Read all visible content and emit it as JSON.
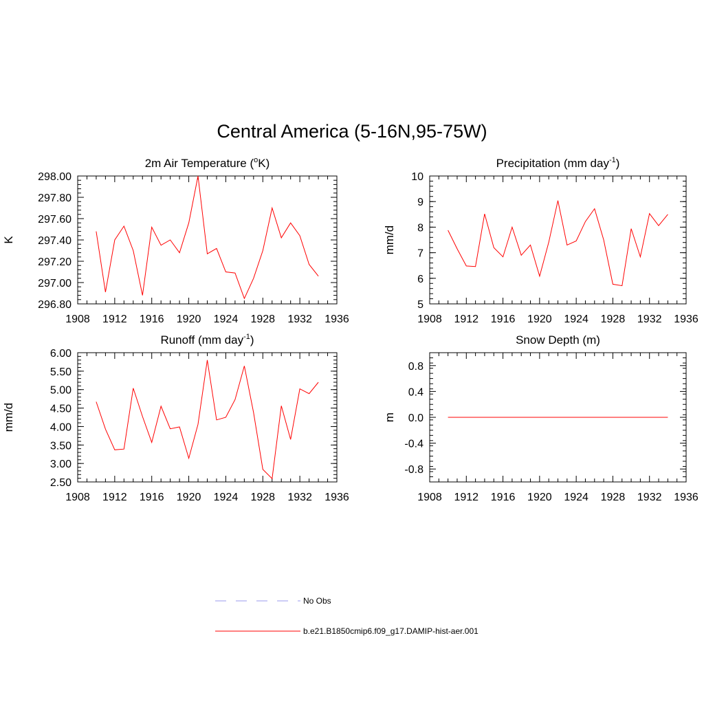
{
  "title": "Central America (5-16N,95-75W)",
  "chart_data": [
    {
      "type": "line",
      "title": "2m Air Temperature (",
      "title_sup": "o",
      "title_end": "K)",
      "ylabel": "K",
      "xlim": [
        1908,
        1936
      ],
      "ylim": [
        296.8,
        298.0
      ],
      "xticks": [
        "1908",
        "1912",
        "1916",
        "1920",
        "1924",
        "1928",
        "1932",
        "1936"
      ],
      "yticks": [
        "296.80",
        "297.00",
        "297.20",
        "297.40",
        "297.60",
        "297.80",
        "298.00"
      ],
      "x": [
        1910,
        1911,
        1912,
        1913,
        1914,
        1915,
        1916,
        1917,
        1918,
        1919,
        1920,
        1921,
        1922,
        1923,
        1924,
        1925,
        1926,
        1927,
        1928,
        1929,
        1930,
        1931,
        1932,
        1933,
        1934
      ],
      "series": [
        {
          "values": [
            297.48,
            296.91,
            297.4,
            297.53,
            297.3,
            296.88,
            297.52,
            297.35,
            297.4,
            297.28,
            297.56,
            298.0,
            297.27,
            297.32,
            297.1,
            297.09,
            296.85,
            297.04,
            297.3,
            297.7,
            297.42,
            297.56,
            297.44,
            297.17,
            297.06
          ]
        }
      ]
    },
    {
      "type": "line",
      "title": "Precipitation (mm day",
      "title_sup": "-1",
      "title_end": ")",
      "ylabel": "mm/d",
      "xlim": [
        1908,
        1936
      ],
      "ylim": [
        5,
        10
      ],
      "xticks": [
        "1908",
        "1912",
        "1916",
        "1920",
        "1924",
        "1928",
        "1932",
        "1936"
      ],
      "yticks": [
        "5",
        "6",
        "7",
        "8",
        "9",
        "10"
      ],
      "x": [
        1910,
        1911,
        1912,
        1913,
        1914,
        1915,
        1916,
        1917,
        1918,
        1919,
        1920,
        1921,
        1922,
        1923,
        1924,
        1925,
        1926,
        1927,
        1928,
        1929,
        1930,
        1931,
        1932,
        1933,
        1934
      ],
      "series": [
        {
          "values": [
            7.88,
            7.15,
            6.48,
            6.46,
            8.52,
            7.2,
            6.84,
            8.0,
            6.9,
            7.3,
            6.08,
            7.41,
            9.04,
            7.3,
            7.46,
            8.22,
            8.72,
            7.5,
            5.77,
            5.71,
            7.94,
            6.84,
            8.53,
            8.06,
            8.5
          ]
        }
      ]
    },
    {
      "type": "line",
      "title": "Runoff (mm day",
      "title_sup": "-1",
      "title_end": ")",
      "ylabel": "mm/d",
      "xlim": [
        1908,
        1936
      ],
      "ylim": [
        2.5,
        6.0
      ],
      "xticks": [
        "1908",
        "1912",
        "1916",
        "1920",
        "1924",
        "1928",
        "1932",
        "1936"
      ],
      "yticks": [
        "2.50",
        "3.00",
        "3.50",
        "4.00",
        "4.50",
        "5.00",
        "5.50",
        "6.00"
      ],
      "x": [
        1910,
        1911,
        1912,
        1913,
        1914,
        1915,
        1916,
        1917,
        1918,
        1919,
        1920,
        1921,
        1922,
        1923,
        1924,
        1925,
        1926,
        1927,
        1928,
        1929,
        1930,
        1931,
        1932,
        1933,
        1934
      ],
      "series": [
        {
          "values": [
            4.67,
            3.93,
            3.37,
            3.39,
            5.04,
            4.27,
            3.57,
            4.55,
            3.94,
            3.99,
            3.14,
            4.06,
            5.8,
            4.18,
            4.25,
            4.73,
            5.64,
            4.38,
            2.84,
            2.59,
            4.56,
            3.65,
            5.02,
            4.89,
            5.2
          ]
        }
      ]
    },
    {
      "type": "line",
      "title": "Snow Depth (m)",
      "title_sup": "",
      "title_end": "",
      "ylabel": "m",
      "xlim": [
        1908,
        1936
      ],
      "ylim": [
        -1.0,
        1.0
      ],
      "xticks": [
        "1908",
        "1912",
        "1916",
        "1920",
        "1924",
        "1928",
        "1932",
        "1936"
      ],
      "yticks": [
        "-0.8",
        "-0.4",
        "0.0",
        "0.4",
        "0.8"
      ],
      "yticks_values": [
        -0.8,
        -0.4,
        0.0,
        0.4,
        0.8
      ],
      "x": [
        1910,
        1911,
        1912,
        1913,
        1914,
        1915,
        1916,
        1917,
        1918,
        1919,
        1920,
        1921,
        1922,
        1923,
        1924,
        1925,
        1926,
        1927,
        1928,
        1929,
        1930,
        1931,
        1932,
        1933,
        1934
      ],
      "series": [
        {
          "values": [
            0,
            0,
            0,
            0,
            0,
            0,
            0,
            0,
            0,
            0,
            0,
            0,
            0,
            0,
            0,
            0,
            0,
            0,
            0,
            0,
            0,
            0,
            0,
            0,
            0
          ]
        }
      ]
    }
  ],
  "legend": [
    {
      "label": "No Obs",
      "color": "#9999ee",
      "dash": true
    },
    {
      "label": "b.e21.B1850cmip6.f09_g17.DAMIP-hist-aer.001",
      "color": "#ff0000",
      "dash": false
    }
  ],
  "colors": {
    "series": "#ff0000",
    "axis": "#000000"
  }
}
